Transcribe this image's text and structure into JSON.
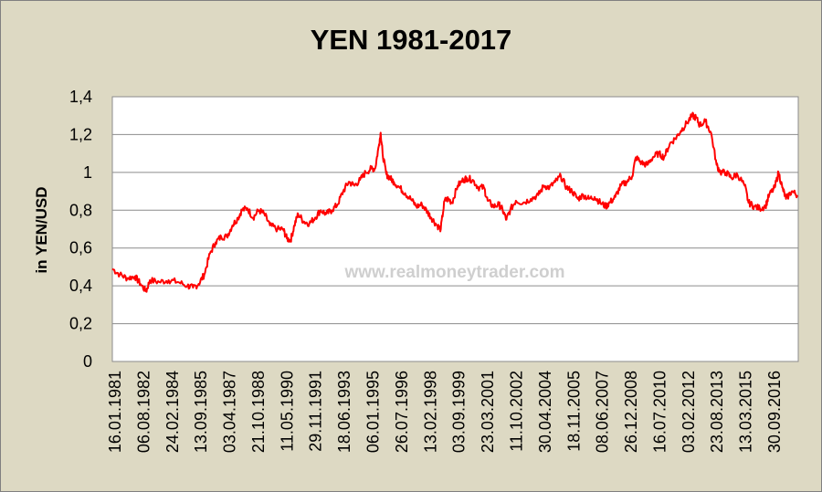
{
  "colors": {
    "background": "#ddd9c3",
    "plot_area": "#ffffff",
    "gridline": "#8c8c8c",
    "series": "#ff0000"
  },
  "chart_data": {
    "type": "line",
    "title": "YEN 1981-2017",
    "xlabel": "",
    "ylabel": "in YEN/USD",
    "watermark": "www.realmoneytrader.com",
    "ylim": [
      0,
      1.4
    ],
    "y_ticks": [
      "0",
      "0,2",
      "0,4",
      "0,6",
      "0,8",
      "1",
      "1,2",
      "1,4"
    ],
    "x_tick_labels": [
      "16.01.1981",
      "06.08.1982",
      "24.02.1984",
      "13.09.1985",
      "03.04.1987",
      "21.10.1988",
      "11.05.1990",
      "29.11.1991",
      "18.06.1993",
      "06.01.1995",
      "26.07.1996",
      "13.02.1998",
      "03.09.1999",
      "23.03.2001",
      "11.10.2002",
      "30.04.2004",
      "18.11.2005",
      "08.06.2007",
      "26.12.2008",
      "16.07.2010",
      "03.02.2012",
      "23.08.2013",
      "13.03.2015",
      "30.09.2016"
    ],
    "grid": true,
    "legend": "none",
    "series": [
      {
        "x": [
          1981.0,
          1981.4,
          1981.8,
          1982.2,
          1982.5,
          1982.8,
          1983.0,
          1983.5,
          1984.0,
          1984.5,
          1985.0,
          1985.3,
          1985.6,
          1985.9,
          1986.2,
          1986.5,
          1986.8,
          1987.1,
          1987.4,
          1987.7,
          1987.9,
          1988.2,
          1988.5,
          1988.8,
          1989.1,
          1989.4,
          1989.8,
          1990.1,
          1990.3,
          1990.5,
          1990.7,
          1990.9,
          1991.2,
          1991.5,
          1991.8,
          1992.1,
          1992.4,
          1992.7,
          1993.0,
          1993.3,
          1993.6,
          1993.9,
          1994.2,
          1994.5,
          1994.8,
          1995.0,
          1995.2,
          1995.3,
          1995.4,
          1995.6,
          1995.8,
          1996.0,
          1996.3,
          1996.6,
          1996.9,
          1997.2,
          1997.5,
          1997.8,
          1998.0,
          1998.3,
          1998.5,
          1998.7,
          1998.9,
          1999.1,
          1999.4,
          1999.7,
          1999.9,
          2000.2,
          2000.5,
          2000.8,
          2001.0,
          2001.3,
          2001.6,
          2001.8,
          2002.0,
          2002.2,
          2002.5,
          2002.9,
          2003.3,
          2003.7,
          2004.0,
          2004.3,
          2004.6,
          2004.9,
          2005.2,
          2005.5,
          2005.8,
          2006.1,
          2006.4,
          2006.7,
          2007.0,
          2007.3,
          2007.5,
          2007.8,
          2008.1,
          2008.4,
          2008.7,
          2008.9,
          2009.2,
          2009.5,
          2009.8,
          2010.1,
          2010.4,
          2010.7,
          2011.0,
          2011.3,
          2011.6,
          2011.9,
          2012.1,
          2012.3,
          2012.6,
          2012.9,
          2013.2,
          2013.4,
          2013.7,
          2014.0,
          2014.3,
          2014.7,
          2014.9,
          2015.2,
          2015.5,
          2015.8,
          2016.0,
          2016.3,
          2016.5,
          2016.7,
          2016.9,
          2017.2,
          2017.5
        ],
        "y": [
          0.49,
          0.46,
          0.44,
          0.45,
          0.41,
          0.37,
          0.43,
          0.42,
          0.43,
          0.42,
          0.4,
          0.39,
          0.41,
          0.46,
          0.57,
          0.63,
          0.66,
          0.66,
          0.72,
          0.76,
          0.8,
          0.81,
          0.76,
          0.8,
          0.78,
          0.72,
          0.7,
          0.7,
          0.65,
          0.64,
          0.72,
          0.78,
          0.74,
          0.73,
          0.76,
          0.8,
          0.78,
          0.8,
          0.83,
          0.9,
          0.95,
          0.93,
          0.96,
          1.0,
          1.02,
          1.02,
          1.14,
          1.21,
          1.1,
          0.99,
          0.97,
          0.95,
          0.92,
          0.89,
          0.86,
          0.82,
          0.83,
          0.79,
          0.76,
          0.72,
          0.7,
          0.85,
          0.86,
          0.84,
          0.93,
          0.96,
          0.97,
          0.96,
          0.92,
          0.92,
          0.85,
          0.82,
          0.83,
          0.8,
          0.75,
          0.8,
          0.85,
          0.84,
          0.86,
          0.88,
          0.93,
          0.92,
          0.95,
          0.98,
          0.92,
          0.9,
          0.86,
          0.88,
          0.86,
          0.87,
          0.84,
          0.82,
          0.84,
          0.87,
          0.93,
          0.95,
          0.98,
          1.08,
          1.05,
          1.04,
          1.08,
          1.1,
          1.08,
          1.15,
          1.18,
          1.22,
          1.26,
          1.3,
          1.29,
          1.25,
          1.27,
          1.21,
          1.04,
          1.0,
          1.0,
          0.97,
          0.99,
          0.93,
          0.84,
          0.82,
          0.81,
          0.82,
          0.88,
          0.92,
          1.0,
          0.92,
          0.86,
          0.9,
          0.88
        ]
      }
    ]
  }
}
